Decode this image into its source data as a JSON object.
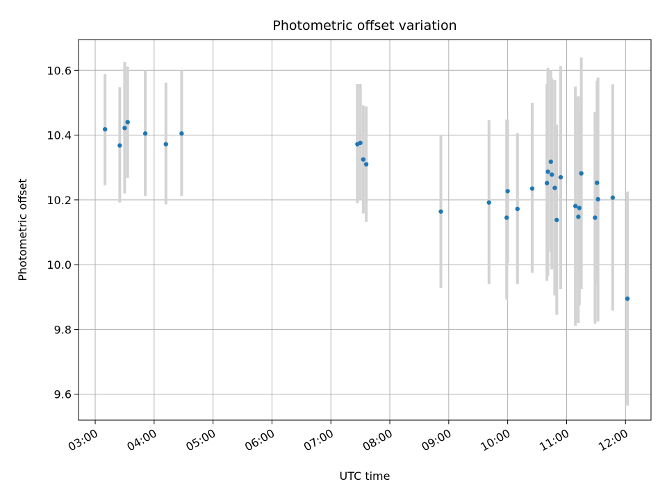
{
  "chart_data": {
    "type": "scatter",
    "title": "Photometric offset variation",
    "xlabel": "UTC time",
    "ylabel": "Photometric offset",
    "grid": true,
    "xlim": [
      "02:43",
      "12:26"
    ],
    "ylim": [
      9.52,
      10.695
    ],
    "xticks": [
      "03:00",
      "04:00",
      "05:00",
      "06:00",
      "07:00",
      "08:00",
      "09:00",
      "10:00",
      "11:00",
      "12:00"
    ],
    "yticks": [
      9.6,
      9.8,
      10.0,
      10.2,
      10.4,
      10.6
    ],
    "ytick_labels": [
      "9.6",
      "9.8",
      "10.0",
      "10.2",
      "10.4",
      "10.6"
    ],
    "marker_color": "#1f77b4",
    "errorbar_color": "#d3d3d3",
    "points": [
      {
        "x": "03:10",
        "y": 10.418,
        "lo": 10.245,
        "hi": 10.588
      },
      {
        "x": "03:25",
        "y": 10.368,
        "lo": 10.192,
        "hi": 10.548
      },
      {
        "x": "03:30",
        "y": 10.422,
        "lo": 10.22,
        "hi": 10.626
      },
      {
        "x": "03:33",
        "y": 10.44,
        "lo": 10.268,
        "hi": 10.612
      },
      {
        "x": "03:51",
        "y": 10.405,
        "lo": 10.212,
        "hi": 10.6
      },
      {
        "x": "04:12",
        "y": 10.372,
        "lo": 10.186,
        "hi": 10.562
      },
      {
        "x": "04:28",
        "y": 10.405,
        "lo": 10.212,
        "hi": 10.6
      },
      {
        "x": "07:27",
        "y": 10.372,
        "lo": 10.19,
        "hi": 10.558
      },
      {
        "x": "07:30",
        "y": 10.376,
        "lo": 10.2,
        "hi": 10.558
      },
      {
        "x": "07:33",
        "y": 10.325,
        "lo": 10.158,
        "hi": 10.492
      },
      {
        "x": "07:36",
        "y": 10.31,
        "lo": 10.132,
        "hi": 10.488
      },
      {
        "x": "08:52",
        "y": 10.164,
        "lo": 9.928,
        "hi": 10.398
      },
      {
        "x": "09:41",
        "y": 10.192,
        "lo": 9.94,
        "hi": 10.446
      },
      {
        "x": "09:59",
        "y": 10.145,
        "lo": 9.892,
        "hi": 10.448
      },
      {
        "x": "10:00",
        "y": 10.227,
        "lo": 10.005,
        "hi": 10.448
      },
      {
        "x": "10:10",
        "y": 10.172,
        "lo": 9.94,
        "hi": 10.406
      },
      {
        "x": "10:25",
        "y": 10.235,
        "lo": 9.975,
        "hi": 10.5
      },
      {
        "x": "10:40",
        "y": 10.252,
        "lo": 9.95,
        "hi": 10.558
      },
      {
        "x": "10:41",
        "y": 10.287,
        "lo": 9.965,
        "hi": 10.608
      },
      {
        "x": "10:44",
        "y": 10.318,
        "lo": 10.04,
        "hi": 10.6
      },
      {
        "x": "10:45",
        "y": 10.278,
        "lo": 9.985,
        "hi": 10.575
      },
      {
        "x": "10:48",
        "y": 10.237,
        "lo": 9.905,
        "hi": 10.57
      },
      {
        "x": "10:50",
        "y": 10.138,
        "lo": 9.845,
        "hi": 10.432
      },
      {
        "x": "10:54",
        "y": 10.27,
        "lo": 9.925,
        "hi": 10.613
      },
      {
        "x": "11:09",
        "y": 10.181,
        "lo": 9.812,
        "hi": 10.55
      },
      {
        "x": "11:12",
        "y": 10.148,
        "lo": 9.82,
        "hi": 10.52
      },
      {
        "x": "11:13",
        "y": 10.175,
        "lo": 9.875,
        "hi": 10.475
      },
      {
        "x": "11:15",
        "y": 10.282,
        "lo": 9.925,
        "hi": 10.64
      },
      {
        "x": "11:29",
        "y": 10.145,
        "lo": 9.818,
        "hi": 10.472
      },
      {
        "x": "11:31",
        "y": 10.253,
        "lo": 9.938,
        "hi": 10.568
      },
      {
        "x": "11:32",
        "y": 10.202,
        "lo": 9.825,
        "hi": 10.578
      },
      {
        "x": "11:47",
        "y": 10.207,
        "lo": 9.858,
        "hi": 10.557
      },
      {
        "x": "12:02",
        "y": 9.895,
        "lo": 9.565,
        "hi": 10.226
      }
    ]
  }
}
